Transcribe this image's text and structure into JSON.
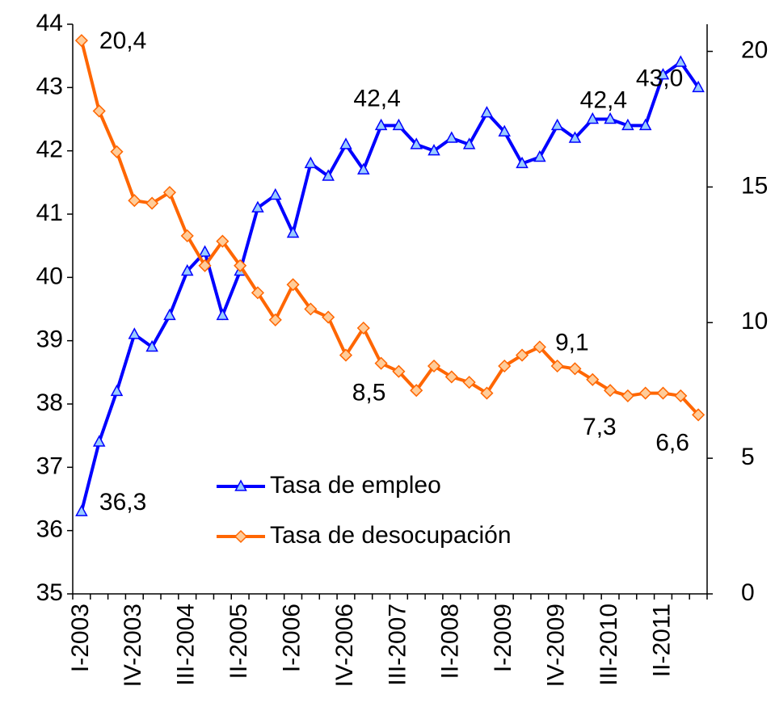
{
  "chart_data": {
    "type": "line",
    "categories": [
      "I-2003",
      null,
      null,
      "IV-2003",
      null,
      null,
      "III-2004",
      null,
      null,
      "II-2005",
      null,
      null,
      "I-2006",
      null,
      null,
      "IV-2006",
      null,
      null,
      "III-2007",
      null,
      null,
      "II-2008",
      null,
      null,
      "I-2009",
      null,
      null,
      "IV-2009",
      null,
      null,
      "III-2010",
      null,
      null,
      "II-2011",
      null,
      null
    ],
    "series": [
      {
        "name": "Tasa de empleo",
        "color": "#0000ff",
        "marker_color": "#99ccff",
        "values": [
          36.3,
          37.4,
          38.2,
          39.1,
          38.9,
          39.4,
          40.1,
          40.4,
          39.4,
          40.1,
          41.1,
          41.3,
          40.7,
          41.8,
          41.6,
          42.1,
          41.7,
          42.4,
          42.4,
          42.1,
          42.0,
          42.2,
          42.1,
          42.6,
          42.3,
          41.8,
          41.9,
          42.4,
          42.2,
          42.5,
          42.5,
          42.4,
          42.4,
          43.2,
          43.4,
          43.0
        ],
        "value_labels": [
          "36,3",
          null,
          null,
          null,
          null,
          null,
          null,
          null,
          null,
          null,
          null,
          null,
          null,
          null,
          null,
          null,
          null,
          "42,4",
          null,
          null,
          null,
          null,
          null,
          null,
          null,
          null,
          null,
          null,
          null,
          null,
          null,
          "42,4",
          null,
          null,
          null,
          "43,0"
        ]
      },
      {
        "name": "Tasa de desocupación",
        "color": "#ff6600",
        "marker_color": "#ffcc99",
        "axis": "y2",
        "values": [
          20.4,
          17.8,
          16.3,
          14.5,
          14.4,
          14.8,
          13.2,
          12.1,
          13.0,
          12.1,
          11.1,
          10.1,
          11.4,
          10.5,
          10.2,
          8.8,
          9.8,
          8.5,
          8.2,
          7.5,
          8.4,
          8.0,
          7.8,
          7.4,
          8.4,
          8.8,
          9.1,
          8.4,
          8.3,
          7.9,
          7.5,
          7.3,
          7.4,
          7.4,
          7.3,
          6.6
        ],
        "value_labels": [
          "20,4",
          null,
          null,
          null,
          null,
          null,
          null,
          null,
          null,
          null,
          null,
          null,
          null,
          null,
          null,
          null,
          null,
          "8,5",
          null,
          null,
          null,
          null,
          null,
          null,
          null,
          null,
          "9,1",
          null,
          null,
          null,
          null,
          "7,3",
          null,
          null,
          null,
          "6,6"
        ]
      }
    ],
    "ylim": [
      35,
      44
    ],
    "yticks": [
      35,
      36,
      37,
      38,
      39,
      40,
      41,
      42,
      43,
      44
    ],
    "y2lim": [
      0,
      21
    ],
    "y2ticks": [
      0,
      5,
      10,
      15,
      20
    ]
  }
}
